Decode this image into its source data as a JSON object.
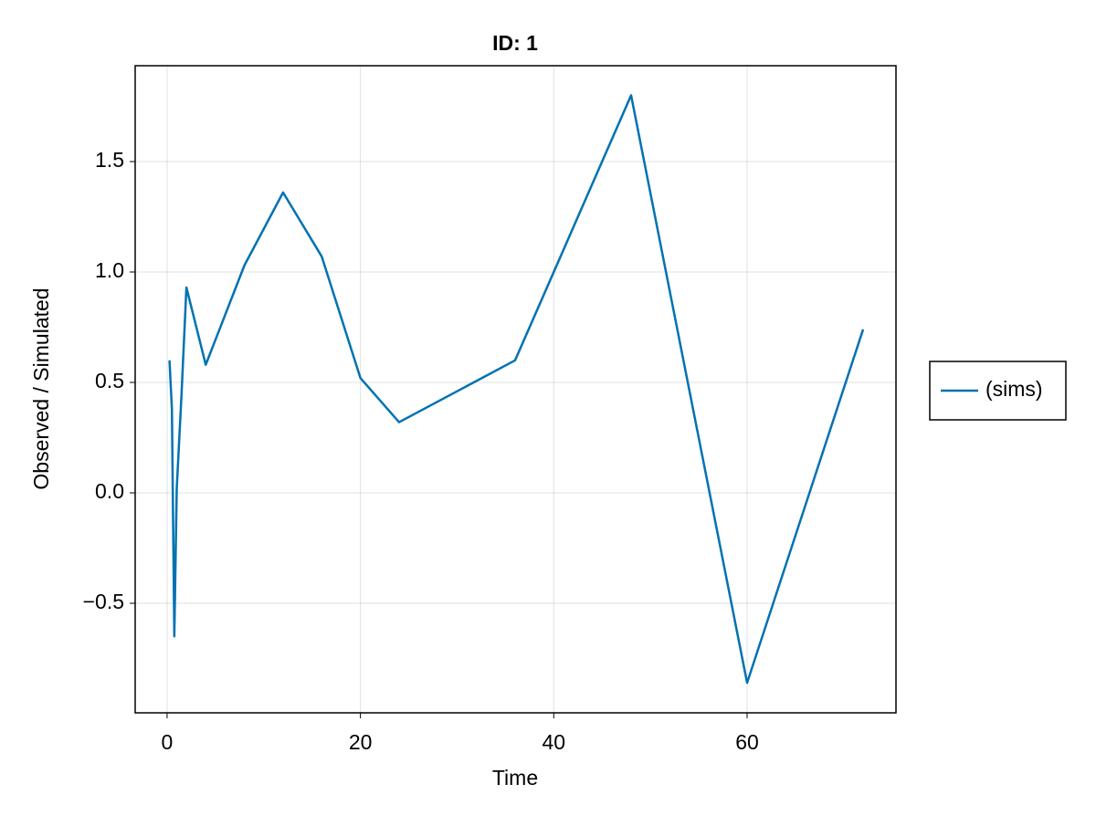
{
  "chart_data": {
    "type": "line",
    "title": "ID: 1",
    "x_label": "Time",
    "y_label": "Observed / Simulated",
    "x": [
      0.25,
      0.5,
      0.75,
      1,
      1.5,
      2,
      4,
      8,
      12,
      16,
      20,
      24,
      36,
      48,
      60,
      72
    ],
    "series": [
      {
        "name": "(sims)",
        "color": "#0072b2",
        "values": [
          0.6,
          0.38,
          -0.65,
          0.02,
          0.45,
          0.93,
          0.58,
          1.03,
          1.36,
          1.07,
          0.52,
          0.32,
          0.6,
          1.8,
          -0.86,
          0.74
        ]
      }
    ],
    "xlim": [
      -3.3,
      75.4
    ],
    "ylim": [
      -0.996,
      1.934
    ],
    "xticks": [
      0,
      20,
      40,
      60
    ],
    "yticks": [
      {
        "value": -0.5,
        "label": "−0.5"
      },
      {
        "value": 0,
        "label": "0.0"
      },
      0.5,
      {
        "value": 1,
        "label": "1.0"
      },
      1.5
    ],
    "grid": true,
    "legend": "right"
  }
}
